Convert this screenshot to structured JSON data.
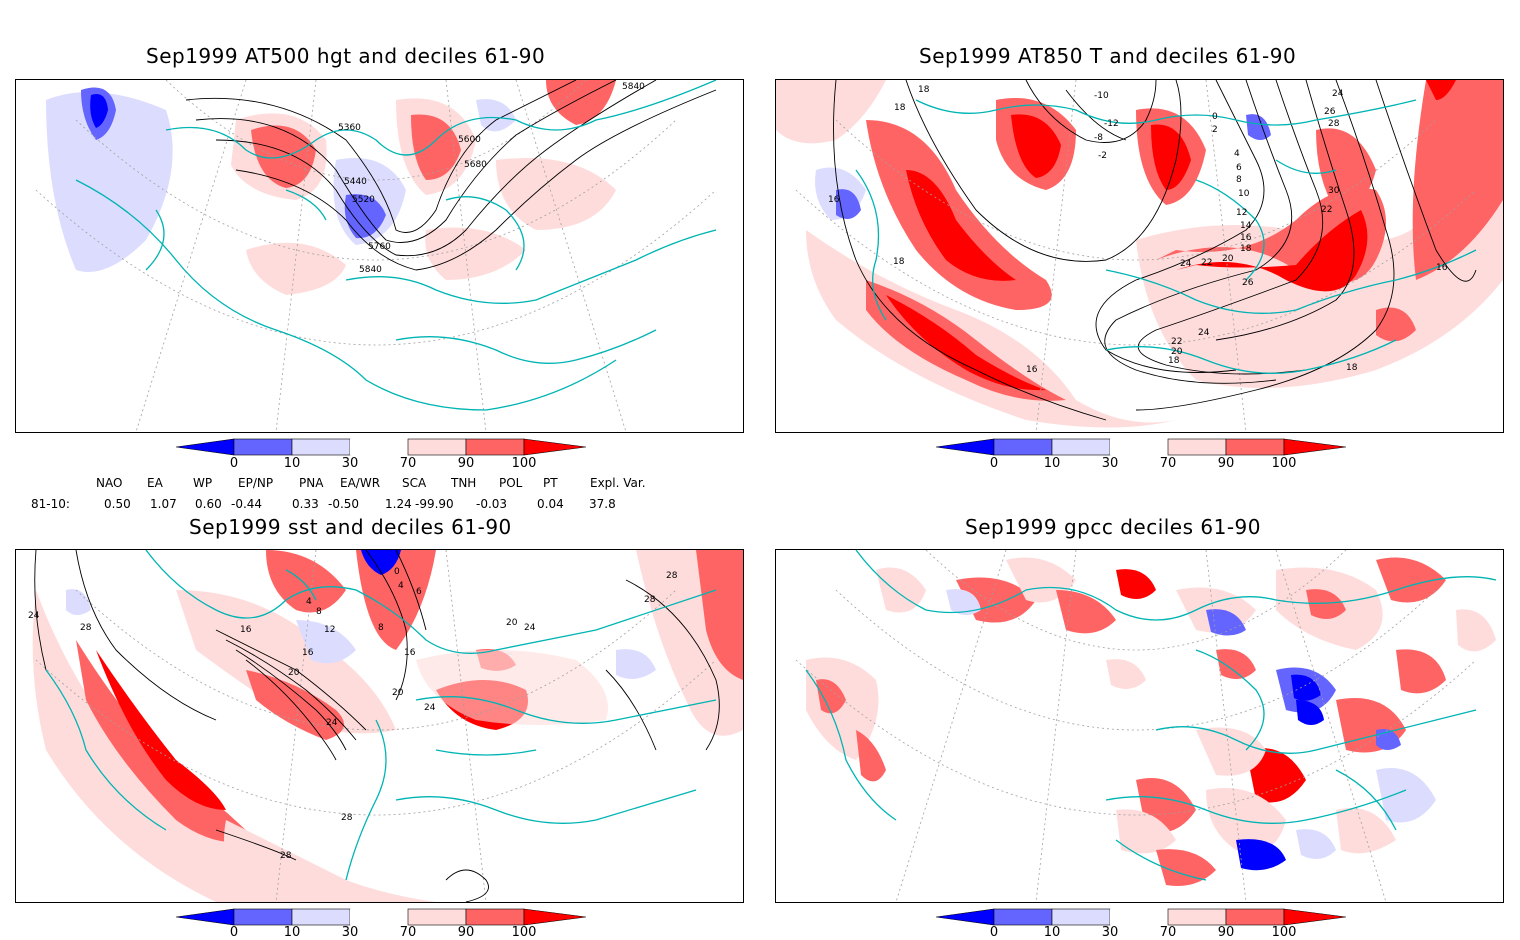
{
  "panels": [
    {
      "title": "Sep1999 AT500 hgt and deciles 61-90",
      "contour_labels": [
        "5840",
        "5360",
        "5600",
        "5680",
        "5440",
        "5520",
        "5760",
        "5840"
      ]
    },
    {
      "title": "Sep1999 AT850 T and deciles 61-90",
      "contour_labels": [
        "18",
        "18",
        "16",
        "18",
        "-10",
        "-12",
        "-8",
        "-2",
        "0",
        "2",
        "4",
        "6",
        "8",
        "10",
        "12",
        "14",
        "16",
        "18",
        "20",
        "22",
        "24",
        "26",
        "28",
        "30",
        "22",
        "24",
        "26",
        "24",
        "22",
        "20",
        "18",
        "16",
        "16",
        "18"
      ]
    },
    {
      "title": "Sep1999 sst and deciles 61-90",
      "contour_labels": [
        "24",
        "28",
        "0",
        "4",
        "6",
        "4",
        "8",
        "8",
        "12",
        "16",
        "16",
        "16",
        "20",
        "20",
        "24",
        "24",
        "20",
        "24",
        "28",
        "28",
        "28",
        "28"
      ]
    },
    {
      "title": "Sep1999 gpcc deciles 61-90",
      "contour_labels": []
    }
  ],
  "colorbar": {
    "labels": [
      "0",
      "10",
      "30",
      "70",
      "90",
      "100"
    ],
    "colors": {
      "dark_blue": "#0000ff",
      "mid_blue": "#6464ff",
      "light_blue": "#dcdcff",
      "white": "#ffffff",
      "light_red": "#ffdcdc",
      "mid_red": "#ff6464",
      "dark_red": "#ff0000"
    }
  },
  "indices": {
    "header": [
      "NAO",
      "EA",
      "WP",
      "EP/NP",
      "PNA",
      "EA/WR",
      "SCA",
      "TNH",
      "POL",
      "PT",
      "Expl. Var."
    ],
    "row_label": "81-10:",
    "values": [
      "0.50",
      "1.07",
      "0.60",
      "-0.44",
      "0.33",
      "-0.50",
      "1.24",
      "-99.90",
      "-0.03",
      "0.04",
      "37.8"
    ]
  },
  "map_style": {
    "coastline_color": "#00b4b4",
    "grid_color": "#a0a0a0",
    "contour_color": "#000000"
  }
}
